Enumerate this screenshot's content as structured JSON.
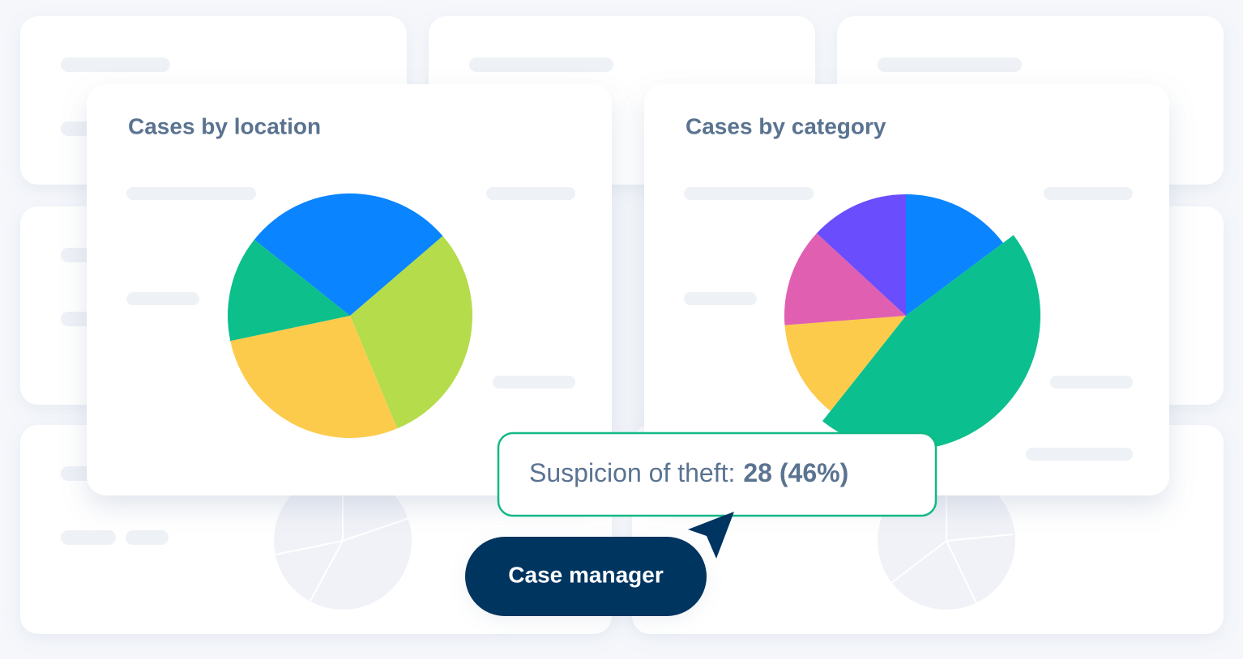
{
  "chart_data": [
    {
      "type": "pie",
      "title": "Cases by location",
      "values": [
        28,
        30,
        28,
        14
      ],
      "colors": [
        "#0a84ff",
        "#b5dc4a",
        "#fccb4c",
        "#0dbf8a"
      ]
    },
    {
      "type": "pie",
      "title": "Cases by category",
      "categories": [
        null,
        "Suspicion of theft:",
        null,
        null,
        null
      ],
      "values": [
        9,
        28,
        8,
        8,
        8
      ],
      "value_labels": [
        null,
        "28 (46%)",
        null,
        null,
        null
      ],
      "colors": [
        "#0a84ff",
        "#0bbf8e",
        "#fccb4c",
        "#e05fb0",
        "#6a4dfc"
      ]
    }
  ],
  "button": {
    "label": "Case manager"
  }
}
